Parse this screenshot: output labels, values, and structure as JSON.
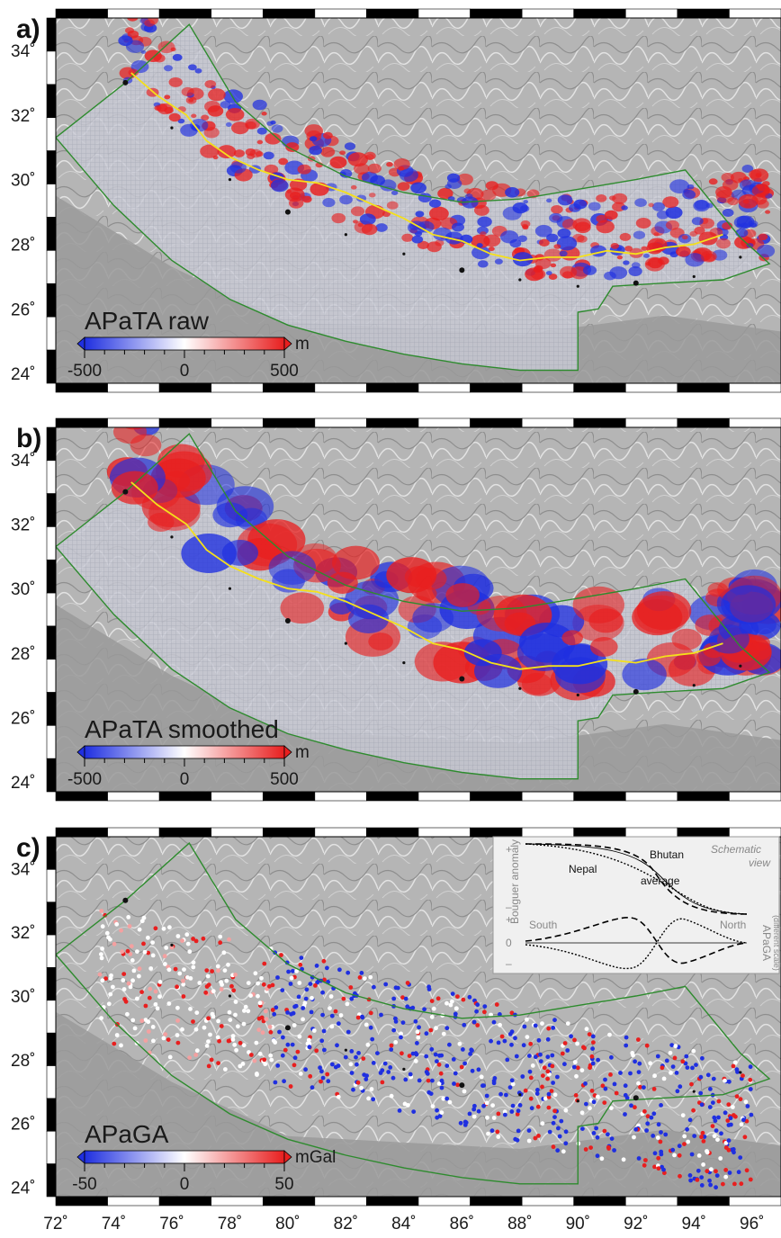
{
  "panels": [
    {
      "letter": "a)",
      "title": "APaTA raw",
      "unit": "m",
      "cb_ticks": [
        "-500",
        "0",
        "500"
      ]
    },
    {
      "letter": "b)",
      "title": "APaTA smoothed",
      "unit": "m",
      "cb_ticks": [
        "-500",
        "0",
        "500"
      ]
    },
    {
      "letter": "c)",
      "title": "APaGA",
      "unit": "mGal",
      "cb_ticks": [
        "-50",
        "0",
        "50"
      ]
    }
  ],
  "lat_labels": [
    "34˚",
    "32˚",
    "30˚",
    "28˚",
    "26˚",
    "24˚"
  ],
  "lon_labels": [
    "72˚",
    "74˚",
    "76˚",
    "78˚",
    "80˚",
    "82˚",
    "84˚",
    "86˚",
    "88˚",
    "90˚",
    "92˚",
    "94˚",
    "96˚"
  ],
  "inset": {
    "ylabel_top": "Bouguer anomaly",
    "plus": "+",
    "minus": "–",
    "zero": "0",
    "schematic": "Schematic",
    "view": "view",
    "bhutan": "Bhutan",
    "nepal": "Nepal",
    "average": "average",
    "south": "South",
    "north": "North",
    "ylabel_bottom": "APaGA",
    "ylabel_bottom_note": "(different scale)"
  },
  "colors": {
    "negative": "#1f2fe0",
    "positive": "#e81f1f",
    "neutral": "#ffffff",
    "outline": "#2e8b2e",
    "divide": "#f5e01a",
    "terrain": "#a9a9a9"
  }
}
